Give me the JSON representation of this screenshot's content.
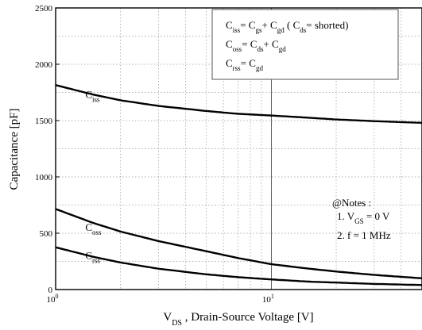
{
  "chart_data": {
    "type": "line",
    "xscale": "log",
    "xlim": [
      1,
      50
    ],
    "ylim": [
      0,
      2500
    ],
    "x_ticks": [
      {
        "value": 1,
        "base": "10",
        "exp": "0"
      },
      {
        "value": 10,
        "base": "10",
        "exp": "1"
      }
    ],
    "y_ticks": [
      {
        "value": 0,
        "label": "0"
      },
      {
        "value": 500,
        "label": "500"
      },
      {
        "value": 1000,
        "label": "1000"
      },
      {
        "value": 1500,
        "label": "1500"
      },
      {
        "value": 2000,
        "label": "2000"
      },
      {
        "value": 2500,
        "label": "2500"
      }
    ],
    "grid": true,
    "xlabel_main": "V",
    "xlabel_sub": "DS",
    "xlabel_rest": " , Drain-Source Voltage [V]",
    "ylabel": "Capacitance [pF]",
    "series": [
      {
        "name_main": "C",
        "name_sub": "iss",
        "label_pos": [
          1.6,
          1700
        ],
        "x": [
          1,
          1.5,
          2,
          3,
          5,
          7,
          10,
          15,
          20,
          30,
          50
        ],
        "y": [
          1815,
          1730,
          1680,
          1630,
          1585,
          1560,
          1545,
          1525,
          1510,
          1495,
          1480
        ]
      },
      {
        "name_main": "C",
        "name_sub": "oss",
        "label_pos": [
          1.6,
          520
        ],
        "x": [
          1,
          1.5,
          2,
          3,
          5,
          7,
          10,
          15,
          20,
          30,
          50
        ],
        "y": [
          715,
          590,
          515,
          430,
          340,
          280,
          225,
          185,
          160,
          130,
          100
        ]
      },
      {
        "name_main": "C",
        "name_sub": "rss",
        "label_pos": [
          1.6,
          270
        ],
        "x": [
          1,
          1.5,
          2,
          3,
          5,
          7,
          10,
          15,
          20,
          30,
          50
        ],
        "y": [
          375,
          290,
          240,
          185,
          135,
          110,
          90,
          70,
          62,
          50,
          40
        ]
      }
    ],
    "legend_box": {
      "placement": "top-right",
      "lines": [
        {
          "parts": [
            {
              "t": "C"
            },
            {
              "t": "iss",
              "sub": true
            },
            {
              "t": "= C"
            },
            {
              "t": "gs",
              "sub": true
            },
            {
              "t": "+ C"
            },
            {
              "t": "gd",
              "sub": true
            },
            {
              "t": " ( C"
            },
            {
              "t": "ds",
              "sub": true
            },
            {
              "t": "= shorted)"
            }
          ]
        },
        {
          "parts": [
            {
              "t": "C"
            },
            {
              "t": "oss",
              "sub": true
            },
            {
              "t": "= C"
            },
            {
              "t": "ds",
              "sub": true
            },
            {
              "t": "+ C"
            },
            {
              "t": "gd",
              "sub": true
            }
          ]
        },
        {
          "parts": [
            {
              "t": "C"
            },
            {
              "t": "rss",
              "sub": true
            },
            {
              "t": "= C"
            },
            {
              "t": "gd",
              "sub": true
            }
          ]
        }
      ]
    },
    "notes": {
      "placement": "right",
      "title": "@Notes :",
      "lines": [
        {
          "parts": [
            {
              "t": "1. V"
            },
            {
              "t": "GS",
              "sub": true
            },
            {
              "t": " = 0 V"
            }
          ]
        },
        {
          "parts": [
            {
              "t": "2. f = 1 MHz"
            }
          ]
        }
      ]
    }
  }
}
